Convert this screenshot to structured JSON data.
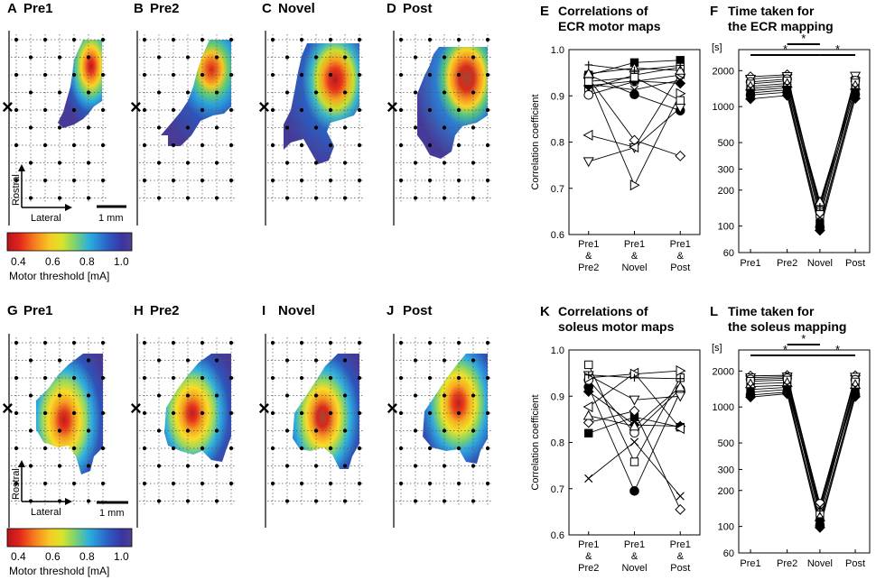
{
  "maps": {
    "ecr": [
      {
        "letter": "A",
        "title": "Pre1"
      },
      {
        "letter": "B",
        "title": "Pre2"
      },
      {
        "letter": "C",
        "title": "Novel"
      },
      {
        "letter": "D",
        "title": "Post"
      }
    ],
    "soleus": [
      {
        "letter": "G",
        "title": "Pre1"
      },
      {
        "letter": "H",
        "title": "Pre2"
      },
      {
        "letter": "I",
        "title": "Novel"
      },
      {
        "letter": "J",
        "title": "Post"
      }
    ],
    "axis_rostral": "Rostral",
    "axis_lateral": "Lateral",
    "scale_bar": "1 mm",
    "colorbar": {
      "ticks": [
        "0.4",
        "0.6",
        "0.8",
        "1.0"
      ],
      "label": "Motor threshold [mA]",
      "colors": [
        "#b4151b",
        "#e3251c",
        "#f57f1f",
        "#f8c824",
        "#d9e52a",
        "#7fd46b",
        "#2aaee0",
        "#2a62c6",
        "#3b34a2",
        "#4d4191"
      ]
    }
  },
  "chart_data": [
    {
      "letter": "E",
      "type": "line",
      "title_lines": [
        "Correlations of",
        "ECR motor maps"
      ],
      "ylabel": "Correlation coefficient",
      "ylim": [
        0.6,
        1.0
      ],
      "yticks": [
        "0.6",
        "0.7",
        "0.8",
        "0.9",
        "1.0"
      ],
      "categories": [
        [
          "Pre1",
          "&",
          "Pre2"
        ],
        [
          "Pre1",
          "&",
          "Novel"
        ],
        [
          "Pre1",
          "&",
          "Post"
        ]
      ],
      "series": [
        {
          "marker": "square-filled",
          "values": [
            0.945,
            0.972,
            0.977
          ]
        },
        {
          "marker": "square-open",
          "values": [
            0.915,
            0.945,
            0.962
          ]
        },
        {
          "marker": "circle-filled",
          "values": [
            0.945,
            0.903,
            0.868
          ]
        },
        {
          "marker": "circle-open",
          "values": [
            0.902,
            0.931,
            0.945
          ]
        },
        {
          "marker": "diamond-filled",
          "values": [
            0.922,
            0.932,
            0.927
          ]
        },
        {
          "marker": "diamond-open",
          "values": [
            0.938,
            0.804,
            0.77
          ]
        },
        {
          "marker": "tri-down-open",
          "values": [
            0.758,
            0.788,
            0.874
          ]
        },
        {
          "marker": "tri-left-open",
          "values": [
            0.815,
            0.789,
            0.948
          ]
        },
        {
          "marker": "tri-right-open",
          "values": [
            0.938,
            0.707,
            0.905
          ]
        },
        {
          "marker": "tri-up-open",
          "values": [
            0.948,
            0.96,
            0.955
          ]
        },
        {
          "marker": "plus",
          "values": [
            0.967,
            0.955,
            0.966
          ]
        },
        {
          "marker": "cross",
          "values": [
            0.925,
            0.913,
            0.934
          ]
        },
        {
          "marker": "square-open",
          "values": [
            0.931,
            0.94,
            0.89
          ]
        }
      ]
    },
    {
      "letter": "F",
      "type": "line",
      "title_lines": [
        "Time taken for",
        "the ECR mapping"
      ],
      "yunit": "[s]",
      "yscale": "log",
      "ylim": [
        60,
        3000
      ],
      "yticks": [
        60,
        100,
        200,
        300,
        500,
        1000,
        2000
      ],
      "categories": [
        "Pre1",
        "Pre2",
        "Novel",
        "Post"
      ],
      "significance": [
        {
          "from": "Pre2",
          "to": "Novel",
          "label": "*"
        },
        {
          "from": "Pre1",
          "to": "Novel",
          "label": "*"
        },
        {
          "from": "Novel",
          "to": "Post",
          "label": "*"
        }
      ],
      "series": [
        {
          "marker": "diamond-open",
          "values": [
            1780,
            1850,
            140,
            1740
          ]
        },
        {
          "marker": "tri-down-open",
          "values": [
            1700,
            1790,
            135,
            1800
          ]
        },
        {
          "marker": "circle-open",
          "values": [
            1610,
            1700,
            150,
            1650
          ]
        },
        {
          "marker": "square-open",
          "values": [
            1550,
            1640,
            125,
            1580
          ]
        },
        {
          "marker": "tri-up-open",
          "values": [
            1480,
            1560,
            160,
            1500
          ]
        },
        {
          "marker": "cross",
          "values": [
            1420,
            1500,
            118,
            1440
          ]
        },
        {
          "marker": "plus",
          "values": [
            1360,
            1440,
            145,
            1380
          ]
        },
        {
          "marker": "square-filled",
          "values": [
            1300,
            1380,
            105,
            1320
          ]
        },
        {
          "marker": "circle-filled",
          "values": [
            1250,
            1320,
            98,
            1260
          ]
        },
        {
          "marker": "diamond-filled",
          "values": [
            1160,
            1240,
            92,
            1170
          ]
        }
      ]
    },
    {
      "letter": "K",
      "type": "line",
      "title_lines": [
        "Correlations of",
        "soleus motor maps"
      ],
      "ylabel": "Correlation coefficient",
      "ylim": [
        0.6,
        1.0
      ],
      "yticks": [
        "0.6",
        "0.7",
        "0.8",
        "0.9",
        "1.0"
      ],
      "categories": [
        [
          "Pre1",
          "&",
          "Pre2"
        ],
        [
          "Pre1",
          "&",
          "Novel"
        ],
        [
          "Pre1",
          "&",
          "Post"
        ]
      ],
      "series": [
        {
          "marker": "square-open",
          "values": [
            0.968,
            0.758,
            0.94
          ]
        },
        {
          "marker": "circle-filled",
          "values": [
            0.92,
            0.695,
            0.91
          ]
        },
        {
          "marker": "square-filled",
          "values": [
            0.82,
            0.855,
            0.833
          ]
        },
        {
          "marker": "circle-open",
          "values": [
            0.935,
            0.821,
            0.915
          ]
        },
        {
          "marker": "diamond-filled",
          "values": [
            0.91,
            0.838,
            0.835
          ]
        },
        {
          "marker": "diamond-open",
          "values": [
            0.843,
            0.868,
            0.655
          ]
        },
        {
          "marker": "tri-down-open",
          "values": [
            0.945,
            0.892,
            0.9
          ]
        },
        {
          "marker": "tri-left-open",
          "values": [
            0.877,
            0.95,
            0.83
          ]
        },
        {
          "marker": "tri-right-open",
          "values": [
            0.94,
            0.948,
            0.955
          ]
        },
        {
          "marker": "tri-up-open",
          "values": [
            0.858,
            0.835,
            0.92
          ]
        },
        {
          "marker": "cross",
          "values": [
            0.722,
            0.801,
            0.684
          ]
        },
        {
          "marker": "plus",
          "values": [
            0.946,
            0.94,
            0.938
          ]
        }
      ]
    },
    {
      "letter": "L",
      "type": "line",
      "title_lines": [
        "Time taken for",
        "the soleus mapping"
      ],
      "yunit": "[s]",
      "yscale": "log",
      "ylim": [
        60,
        3000
      ],
      "yticks": [
        60,
        100,
        200,
        300,
        500,
        1000,
        2000
      ],
      "categories": [
        "Pre1",
        "Pre2",
        "Novel",
        "Post"
      ],
      "significance": [
        {
          "from": "Pre2",
          "to": "Novel",
          "label": "*"
        },
        {
          "from": "Pre1",
          "to": "Novel",
          "label": "*"
        },
        {
          "from": "Novel",
          "to": "Post",
          "label": "*"
        }
      ],
      "series": [
        {
          "marker": "diamond-open",
          "values": [
            1820,
            1840,
            150,
            1830
          ]
        },
        {
          "marker": "tri-down-open",
          "values": [
            1760,
            1790,
            140,
            1780
          ]
        },
        {
          "marker": "circle-open",
          "values": [
            1700,
            1740,
            155,
            1690
          ]
        },
        {
          "marker": "square-open",
          "values": [
            1640,
            1680,
            130,
            1620
          ]
        },
        {
          "marker": "tri-up-open",
          "values": [
            1560,
            1600,
            120,
            1540
          ]
        },
        {
          "marker": "cross",
          "values": [
            1480,
            1520,
            145,
            1460
          ]
        },
        {
          "marker": "plus",
          "values": [
            1400,
            1460,
            135,
            1400
          ]
        },
        {
          "marker": "square-filled",
          "values": [
            1330,
            1400,
            110,
            1340
          ]
        },
        {
          "marker": "circle-filled",
          "values": [
            1260,
            1330,
            102,
            1270
          ]
        },
        {
          "marker": "diamond-filled",
          "values": [
            1210,
            1290,
            98,
            1220
          ]
        }
      ]
    }
  ]
}
